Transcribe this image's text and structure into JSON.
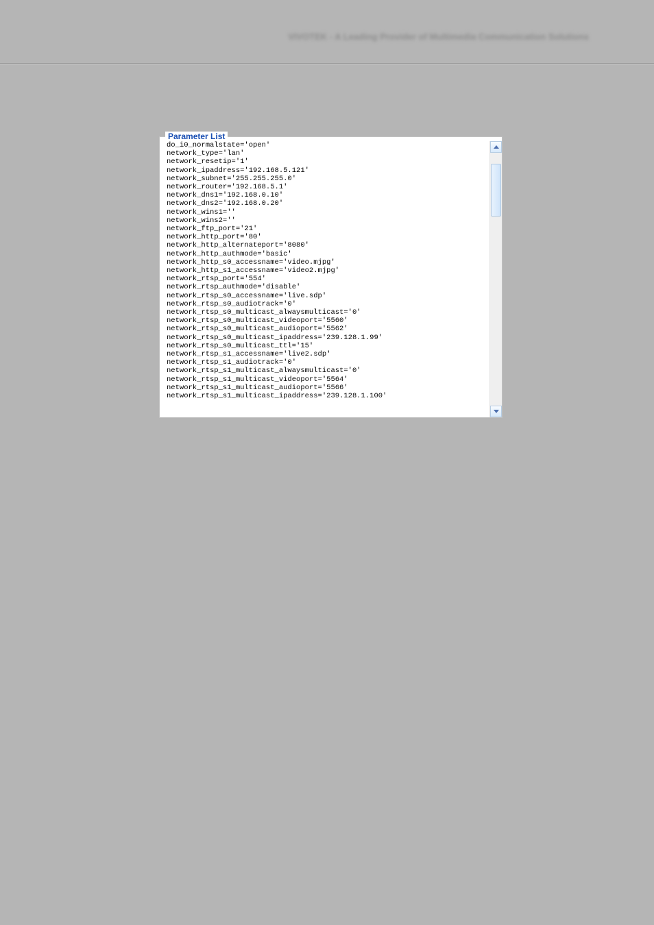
{
  "header": {
    "brand_text": "VIVOTEK - A Leading Provider of Multimedia Communication Solutions"
  },
  "panel": {
    "legend": "Parameter List",
    "lines": [
      "do_i0_normalstate='open'",
      "network_type='lan'",
      "network_resetip='1'",
      "network_ipaddress='192.168.5.121'",
      "network_subnet='255.255.255.0'",
      "network_router='192.168.5.1'",
      "network_dns1='192.168.0.10'",
      "network_dns2='192.168.0.20'",
      "network_wins1=''",
      "network_wins2=''",
      "network_ftp_port='21'",
      "network_http_port='80'",
      "network_http_alternateport='8080'",
      "network_http_authmode='basic'",
      "network_http_s0_accessname='video.mjpg'",
      "network_http_s1_accessname='video2.mjpg'",
      "network_rtsp_port='554'",
      "network_rtsp_authmode='disable'",
      "network_rtsp_s0_accessname='live.sdp'",
      "network_rtsp_s0_audiotrack='0'",
      "network_rtsp_s0_multicast_alwaysmulticast='0'",
      "network_rtsp_s0_multicast_videoport='5560'",
      "network_rtsp_s0_multicast_audioport='5562'",
      "network_rtsp_s0_multicast_ipaddress='239.128.1.99'",
      "network_rtsp_s0_multicast_ttl='15'",
      "network_rtsp_s1_accessname='live2.sdp'",
      "network_rtsp_s1_audiotrack='0'",
      "network_rtsp_s1_multicast_alwaysmulticast='0'",
      "network_rtsp_s1_multicast_videoport='5564'",
      "network_rtsp_s1_multicast_audioport='5566'",
      "network_rtsp_s1_multicast_ipaddress='239.128.1.100'"
    ]
  },
  "colors": {
    "page_bg": "#b5b5b5",
    "panel_bg": "#ffffff",
    "legend_color": "#1a4fb3",
    "text_color": "#000000",
    "scrollbar_bg": "#efefef",
    "scrollbar_accent": "#4d6fae"
  }
}
